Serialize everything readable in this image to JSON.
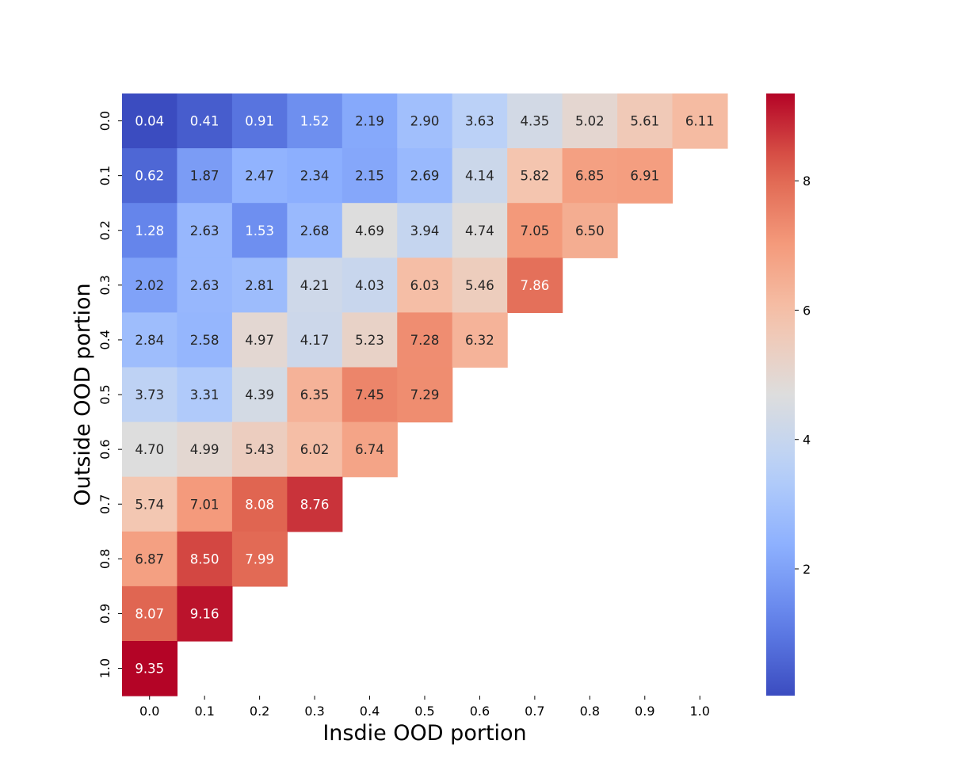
{
  "chart_data": {
    "type": "heatmap",
    "title": "",
    "xlabel": "Insdie OOD portion",
    "ylabel": "Outside OOD portion",
    "x_tick_labels": [
      "0.0",
      "0.1",
      "0.2",
      "0.3",
      "0.4",
      "0.5",
      "0.6",
      "0.7",
      "0.8",
      "0.9",
      "1.0"
    ],
    "y_tick_labels": [
      "0.0",
      "0.1",
      "0.2",
      "0.3",
      "0.4",
      "0.5",
      "0.6",
      "0.7",
      "0.8",
      "0.9",
      "1.0"
    ],
    "colormap": "coolwarm",
    "color_range": [
      0.04,
      9.35
    ],
    "colorbar_ticks": [
      2,
      4,
      6,
      8
    ],
    "colorbar_tick_labels": [
      "2",
      "4",
      "6",
      "8"
    ],
    "rows": [
      {
        "y": "0.0",
        "values": [
          "0.04",
          "0.41",
          "0.91",
          "1.52",
          "2.19",
          "2.90",
          "3.63",
          "4.35",
          "5.02",
          "5.61",
          "6.11"
        ]
      },
      {
        "y": "0.1",
        "values": [
          "0.62",
          "1.87",
          "2.47",
          "2.34",
          "2.15",
          "2.69",
          "4.14",
          "5.82",
          "6.85",
          "6.91"
        ]
      },
      {
        "y": "0.2",
        "values": [
          "1.28",
          "2.63",
          "1.53",
          "2.68",
          "4.69",
          "3.94",
          "4.74",
          "7.05",
          "6.50"
        ]
      },
      {
        "y": "0.3",
        "values": [
          "2.02",
          "2.63",
          "2.81",
          "4.21",
          "4.03",
          "6.03",
          "5.46",
          "7.86"
        ]
      },
      {
        "y": "0.4",
        "values": [
          "2.84",
          "2.58",
          "4.97",
          "4.17",
          "5.23",
          "7.28",
          "6.32"
        ]
      },
      {
        "y": "0.5",
        "values": [
          "3.73",
          "3.31",
          "4.39",
          "6.35",
          "7.45",
          "7.29"
        ]
      },
      {
        "y": "0.6",
        "values": [
          "4.70",
          "4.99",
          "5.43",
          "6.02",
          "6.74"
        ]
      },
      {
        "y": "0.7",
        "values": [
          "5.74",
          "7.01",
          "8.08",
          "8.76"
        ]
      },
      {
        "y": "0.8",
        "values": [
          "6.87",
          "8.50",
          "7.99"
        ]
      },
      {
        "y": "0.9",
        "values": [
          "8.07",
          "9.16"
        ]
      },
      {
        "y": "1.0",
        "values": [
          "9.35"
        ]
      }
    ]
  }
}
